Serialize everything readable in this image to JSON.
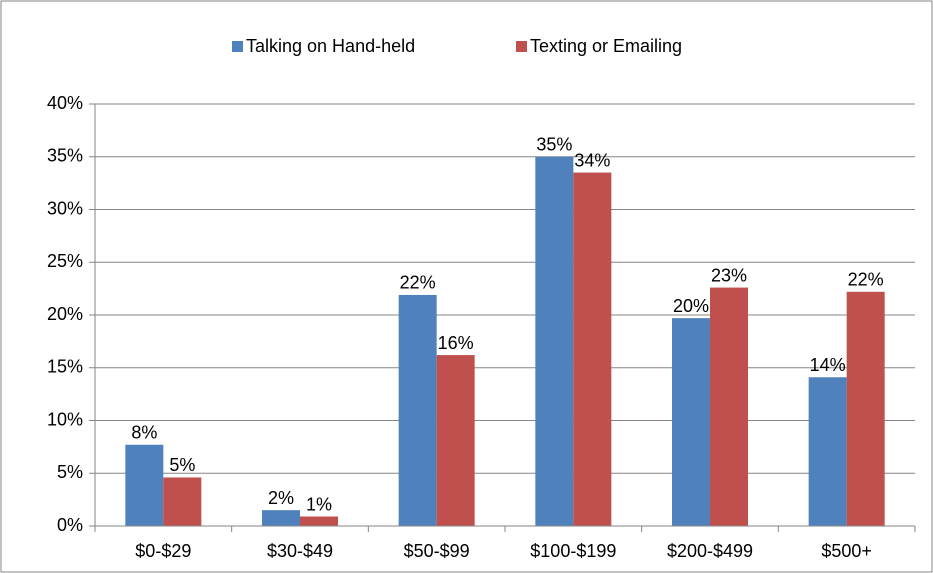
{
  "chart_data": {
    "type": "bar",
    "categories": [
      "$0-$29",
      "$30-$49",
      "$50-$99",
      "$100-$199",
      "$200-$499",
      "$500+"
    ],
    "series": [
      {
        "name": "Talking on Hand-held",
        "color": "#4f81bd",
        "values": [
          7.7,
          1.5,
          21.9,
          35,
          19.7,
          14.1
        ],
        "value_labels": [
          "8%",
          "2%",
          "22%",
          "35%",
          "20%",
          "14%"
        ]
      },
      {
        "name": "Texting or Emailing",
        "color": "#c0504d",
        "values": [
          4.6,
          0.9,
          16.2,
          33.5,
          22.6,
          22.2
        ],
        "value_labels": [
          "5%",
          "1%",
          "16%",
          "34%",
          "23%",
          "22%"
        ]
      }
    ],
    "ylim": [
      0,
      40
    ],
    "yticks": [
      {
        "value": 0,
        "label": "0%"
      },
      {
        "value": 5,
        "label": "5%"
      },
      {
        "value": 10,
        "label": "10%"
      },
      {
        "value": 15,
        "label": "15%"
      },
      {
        "value": 20,
        "label": "20%"
      },
      {
        "value": 25,
        "label": "25%"
      },
      {
        "value": 30,
        "label": "30%"
      },
      {
        "value": 35,
        "label": "35%"
      },
      {
        "value": 40,
        "label": "40%"
      }
    ],
    "grid": true,
    "legend": "top"
  }
}
